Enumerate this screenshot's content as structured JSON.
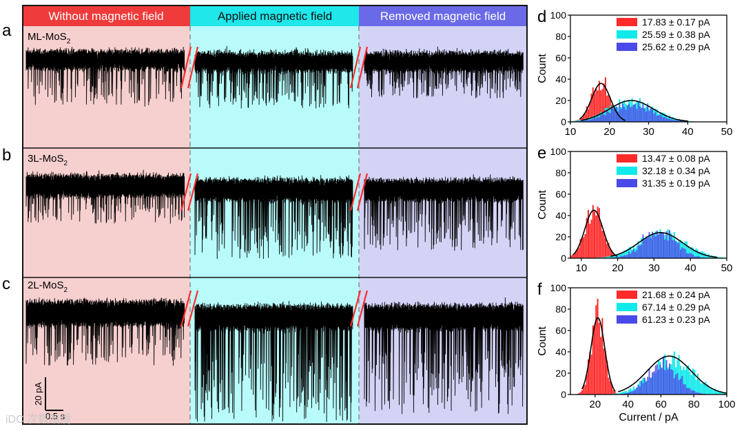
{
  "figure": {
    "conditions": [
      {
        "label": "Without magnetic field",
        "header_color": "#ef3b3b",
        "bg_color": "#f6cfcf"
      },
      {
        "label": "Applied magnetic field",
        "header_color": "#1fe7ea",
        "bg_color": "#b9fbfb"
      },
      {
        "label": "Removed magnetic field",
        "header_color": "#6a6ae8",
        "bg_color": "#d3d3f6"
      }
    ],
    "trace_panels": [
      {
        "letter": "a",
        "sample_base": "ML-MoS",
        "sample_sub": "2"
      },
      {
        "letter": "b",
        "sample_base": "3L-MoS",
        "sample_sub": "2"
      },
      {
        "letter": "c",
        "sample_base": "2L-MoS",
        "sample_sub": "2"
      }
    ],
    "scale_bar": {
      "current": "20 pA",
      "time": "0.5 s"
    },
    "watermark": "iDC 次数暗境",
    "colors": {
      "red": "#ff2a2a",
      "cyan": "#11e9ea",
      "blue": "#4a4ae8",
      "fit": "#000000"
    }
  },
  "chart_data": [
    {
      "type": "bar",
      "panel": "d",
      "ylabel": "Count",
      "xlabel": "",
      "xlim": [
        10,
        50
      ],
      "ylim": [
        0,
        100
      ],
      "xticks": [
        10,
        20,
        30,
        40,
        50
      ],
      "yticks": [
        0,
        20,
        40,
        60,
        80,
        100
      ],
      "legend": [
        "17.83 ± 0.17 pA",
        "25.59 ± 0.38 pA",
        "25.62 ± 0.29 pA"
      ],
      "series": [
        {
          "name": "17.83 ± 0.17 pA",
          "color": "red",
          "mean": 17.83,
          "sigma": 2.4,
          "peak": 38
        },
        {
          "name": "25.59 ± 0.38 pA",
          "color": "cyan",
          "mean": 25.59,
          "sigma": 5.8,
          "peak": 20
        },
        {
          "name": "25.62 ± 0.29 pA",
          "color": "blue",
          "mean": 25.62,
          "sigma": 5.3,
          "peak": 19
        }
      ],
      "fit_peaks": [
        17.83,
        25.6
      ],
      "fit_heights": [
        36,
        20
      ],
      "fit_sigmas": [
        2.4,
        5.6
      ]
    },
    {
      "type": "bar",
      "panel": "e",
      "ylabel": "Count",
      "xlabel": "",
      "xlim": [
        7,
        50
      ],
      "ylim": [
        0,
        100
      ],
      "xticks": [
        10,
        20,
        30,
        40,
        50
      ],
      "yticks": [
        0,
        20,
        40,
        60,
        80,
        100
      ],
      "legend": [
        "13.47 ± 0.08 pA",
        "32.18 ± 0.34 pA",
        "31.35 ± 0.19 pA"
      ],
      "series": [
        {
          "name": "13.47 ± 0.08 pA",
          "color": "red",
          "mean": 13.47,
          "sigma": 2.5,
          "peak": 45
        },
        {
          "name": "32.18 ± 0.34 pA",
          "color": "cyan",
          "mean": 32.18,
          "sigma": 6.5,
          "peak": 23
        },
        {
          "name": "31.35 ± 0.19 pA",
          "color": "blue",
          "mean": 31.35,
          "sigma": 4.5,
          "peak": 28
        }
      ],
      "fit_peaks": [
        13.47,
        31.8
      ],
      "fit_heights": [
        45,
        24
      ],
      "fit_sigmas": [
        2.5,
        6.0
      ]
    },
    {
      "type": "bar",
      "panel": "f",
      "ylabel": "Count",
      "xlabel": "Current / pA",
      "xlim": [
        5,
        100
      ],
      "ylim": [
        0,
        100
      ],
      "xticks": [
        20,
        40,
        60,
        80,
        100
      ],
      "yticks": [
        0,
        20,
        40,
        60,
        80,
        100
      ],
      "legend": [
        "21.68 ± 0.24 pA",
        "67.14 ± 0.29 pA",
        "61.23 ± 0.23 pA"
      ],
      "series": [
        {
          "name": "21.68 ± 0.24 pA",
          "color": "red",
          "mean": 21.68,
          "sigma": 4.0,
          "peak": 75
        },
        {
          "name": "67.14 ± 0.29 pA",
          "color": "cyan",
          "mean": 67.14,
          "sigma": 13.0,
          "peak": 33
        },
        {
          "name": "61.23 ± 0.23 pA",
          "color": "blue",
          "mean": 61.23,
          "sigma": 9.0,
          "peak": 33
        }
      ],
      "fit_peaks": [
        21.68,
        65.0
      ],
      "fit_heights": [
        72,
        36
      ],
      "fit_sigmas": [
        4.2,
        13.5
      ]
    }
  ]
}
